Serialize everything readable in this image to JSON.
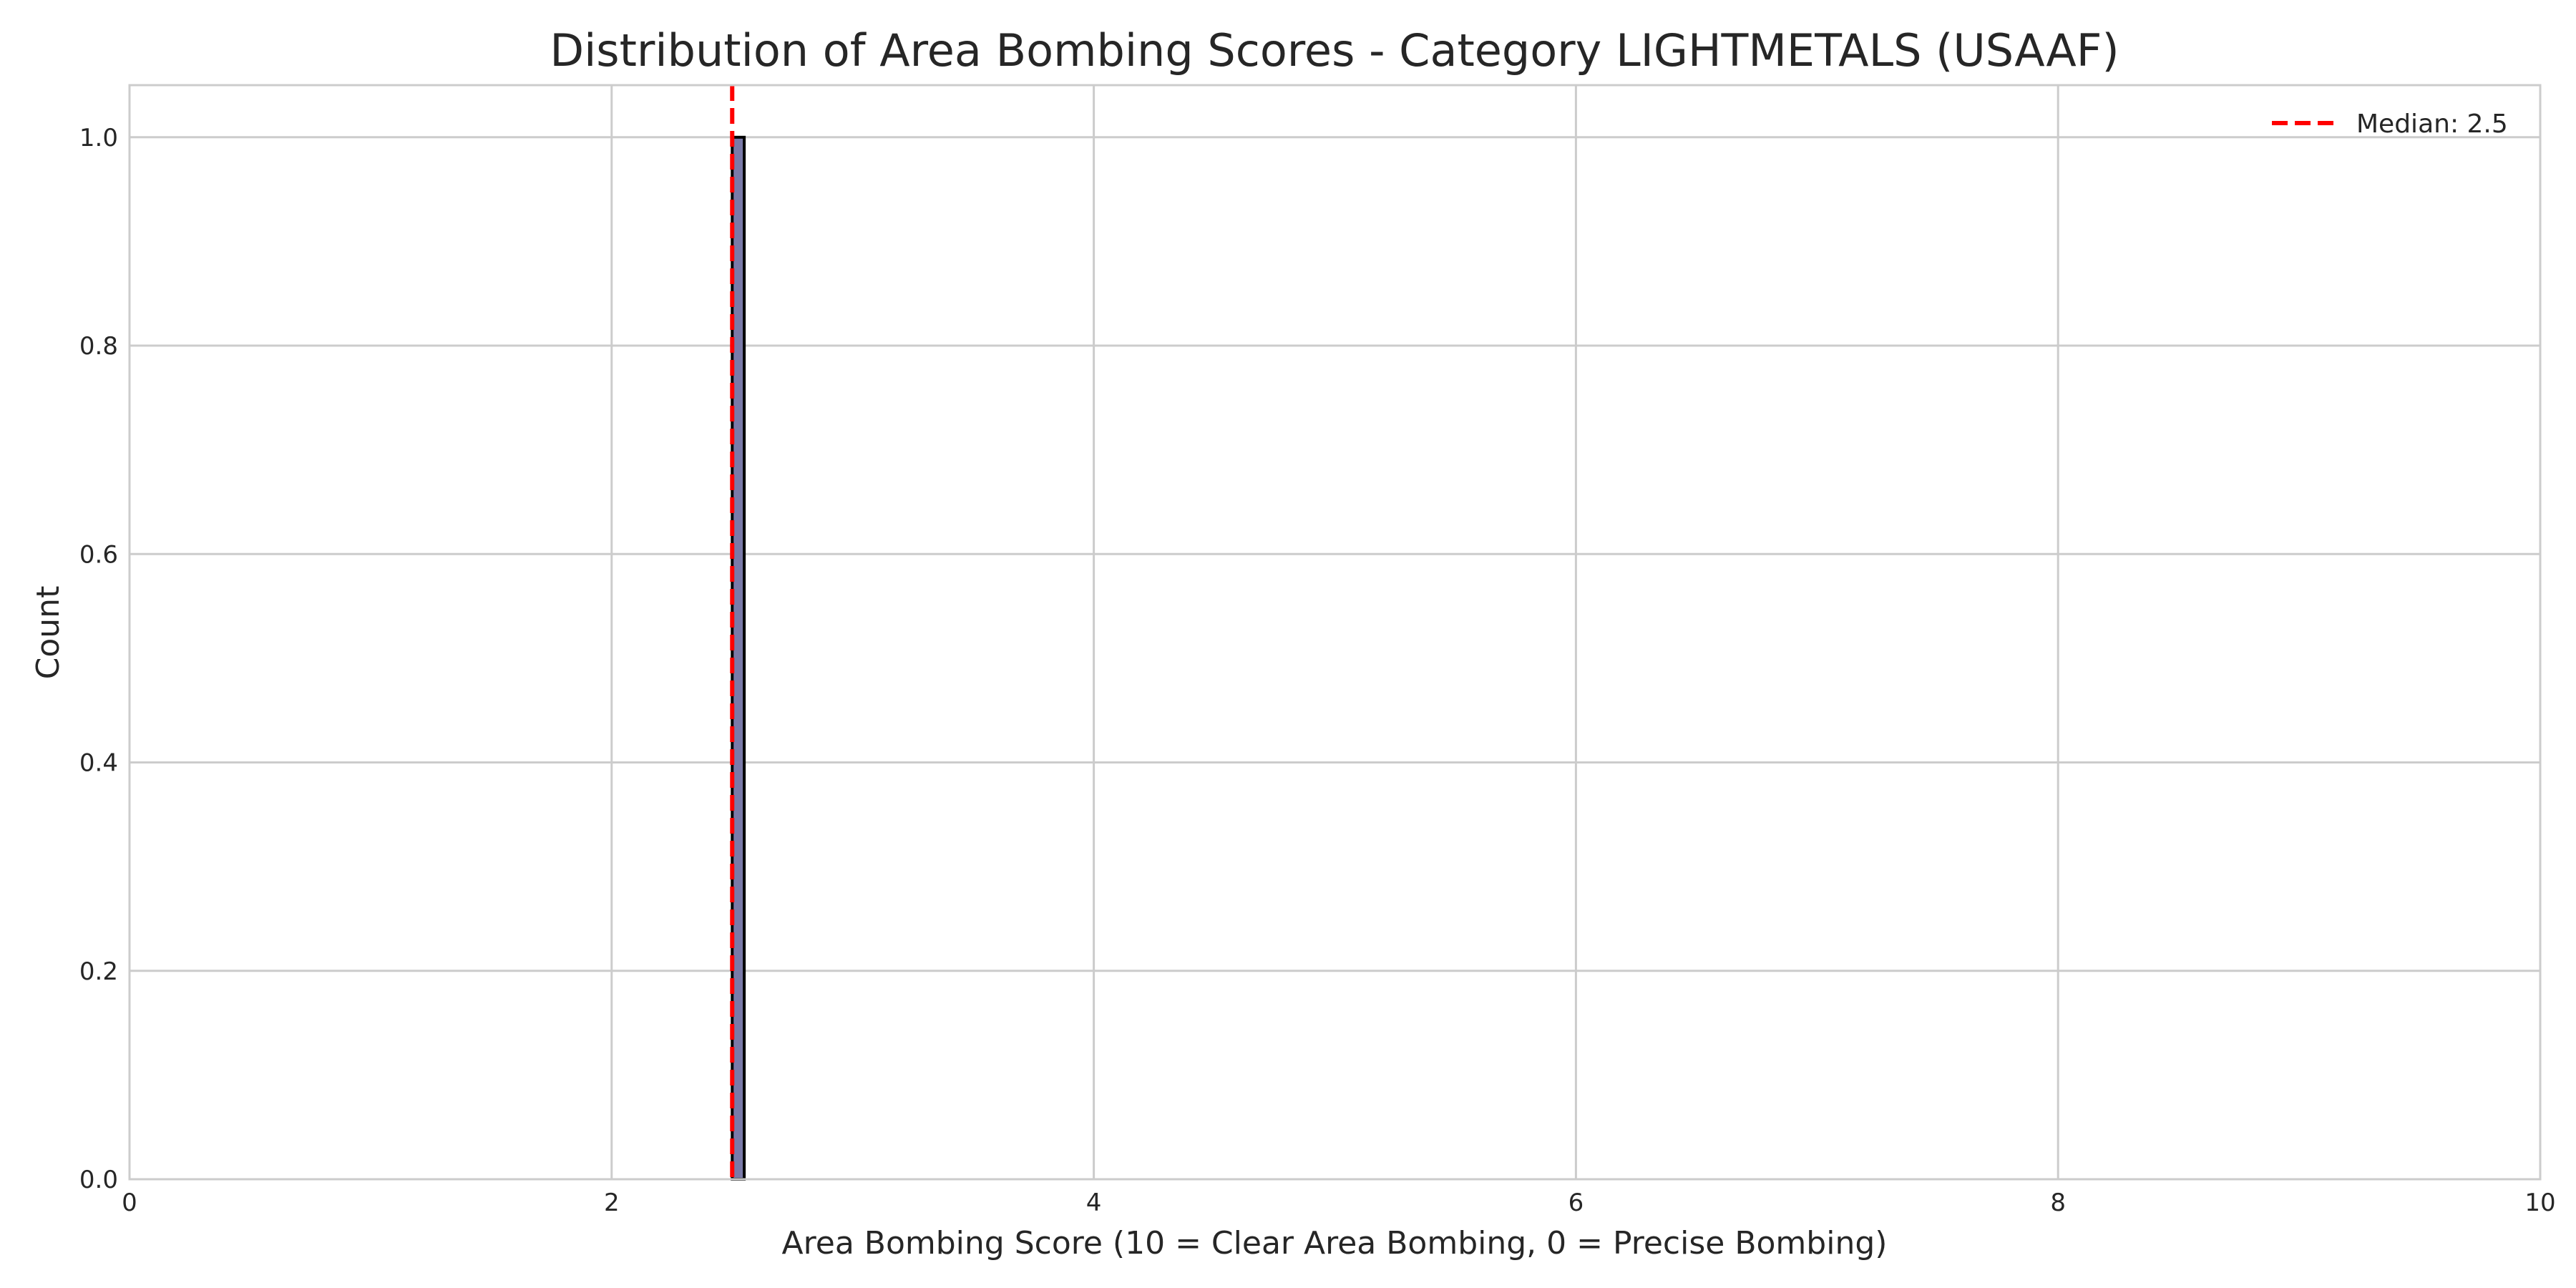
{
  "chart_data": {
    "type": "bar",
    "title": "Distribution of Area Bombing Scores - Category LIGHTMETALS (USAAF)",
    "xlabel": "Area Bombing Score (10 = Clear Area Bombing, 0 = Precise Bombing)",
    "ylabel": "Count",
    "xlim": [
      0,
      10
    ],
    "ylim": [
      0,
      1.05
    ],
    "xticks": [
      "0",
      "2",
      "4",
      "6",
      "8",
      "10"
    ],
    "yticks": [
      "0.0",
      "0.2",
      "0.4",
      "0.6",
      "0.8",
      "1.0"
    ],
    "grid": true,
    "legend_position": "top-right",
    "bins": [
      {
        "x_start": 2.5,
        "x_end": 2.55,
        "count": 1
      }
    ],
    "median": {
      "value": 2.5,
      "label": "Median: 2.5",
      "color": "#ff0000"
    },
    "bar_color": "#7a7aa8",
    "bar_edge_color": "#000000"
  }
}
